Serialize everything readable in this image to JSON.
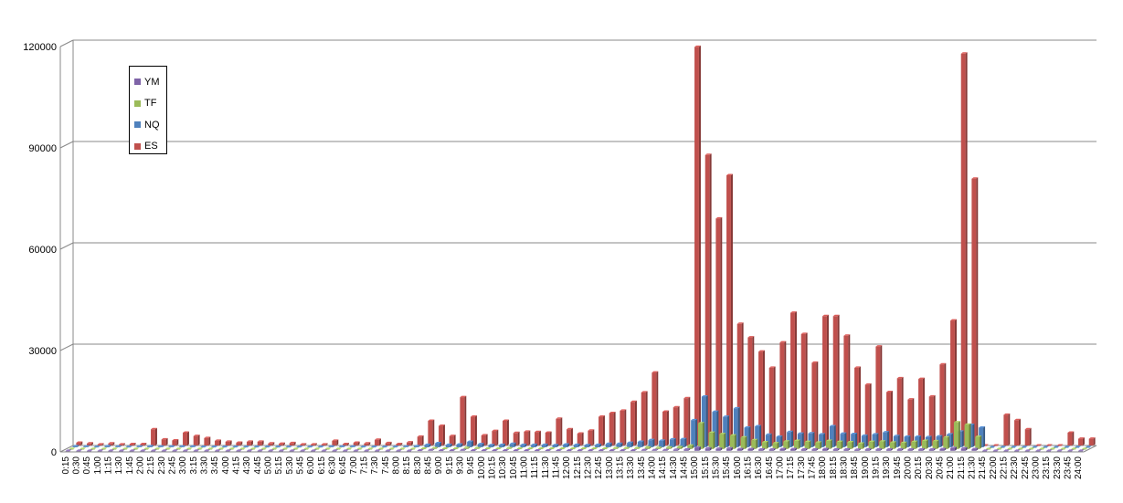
{
  "chart_data": {
    "type": "bar",
    "title": "",
    "xlabel": "",
    "ylabel": "",
    "ylim": [
      0,
      120000
    ],
    "yticks": [
      0,
      30000,
      60000,
      90000,
      120000
    ],
    "grid": true,
    "legend_position": "top-left",
    "categories": [
      "0:15",
      "0:30",
      "0:45",
      "1:00",
      "1:15",
      "1:30",
      "1:45",
      "2:00",
      "2:15",
      "2:30",
      "2:45",
      "3:00",
      "3:15",
      "3:30",
      "3:45",
      "4:00",
      "4:15",
      "4:30",
      "4:45",
      "5:00",
      "5:15",
      "5:30",
      "5:45",
      "6:00",
      "6:15",
      "6:30",
      "6:45",
      "7:00",
      "7:15",
      "7:30",
      "7:45",
      "8:00",
      "8:15",
      "8:30",
      "8:45",
      "9:00",
      "9:15",
      "9:30",
      "9:45",
      "10:00",
      "10:15",
      "10:30",
      "10:45",
      "11:00",
      "11:15",
      "11:30",
      "11:45",
      "12:00",
      "12:15",
      "12:30",
      "12:45",
      "13:00",
      "13:15",
      "13:30",
      "13:45",
      "14:00",
      "14:15",
      "14:30",
      "14:45",
      "15:00",
      "15:15",
      "15:30",
      "15:45",
      "16:00",
      "16:15",
      "16:30",
      "16:45",
      "17:00",
      "17:15",
      "17:30",
      "17:45",
      "18:00",
      "18:15",
      "18:30",
      "18:45",
      "19:00",
      "19:15",
      "19:30",
      "19:45",
      "20:00",
      "20:15",
      "20:30",
      "20:45",
      "21:00",
      "21:15",
      "21:30",
      "21:45",
      "22:00",
      "22:15",
      "22:30",
      "22:45",
      "23:00",
      "23:15",
      "23:30",
      "23:45",
      "24:00"
    ],
    "series": [
      {
        "name": "YM",
        "color": "#7f64a8",
        "values": [
          0,
          0,
          0,
          0,
          0,
          0,
          0,
          0,
          0,
          0,
          0,
          0,
          0,
          0,
          0,
          0,
          0,
          0,
          0,
          0,
          0,
          0,
          0,
          0,
          0,
          0,
          0,
          0,
          0,
          0,
          0,
          0,
          0,
          100,
          200,
          100,
          100,
          200,
          100,
          100,
          100,
          100,
          100,
          100,
          100,
          100,
          100,
          100,
          100,
          100,
          100,
          100,
          100,
          100,
          200,
          200,
          200,
          300,
          400,
          900,
          700,
          600,
          700,
          500,
          500,
          400,
          400,
          500,
          500,
          400,
          400,
          500,
          400,
          400,
          300,
          400,
          400,
          400,
          400,
          400,
          400,
          400,
          500,
          800,
          700,
          500,
          0,
          0,
          0,
          0,
          0,
          0,
          0,
          0,
          0,
          0
        ]
      },
      {
        "name": "TF",
        "color": "#9bbb59",
        "values": [
          0,
          0,
          0,
          0,
          0,
          0,
          0,
          0,
          0,
          0,
          0,
          0,
          0,
          0,
          0,
          0,
          0,
          0,
          0,
          0,
          0,
          0,
          0,
          0,
          0,
          0,
          0,
          0,
          0,
          0,
          0,
          0,
          0,
          100,
          200,
          100,
          100,
          300,
          200,
          100,
          100,
          200,
          100,
          100,
          100,
          100,
          100,
          100,
          100,
          100,
          100,
          200,
          200,
          200,
          400,
          300,
          400,
          500,
          1000,
          7600,
          4800,
          4400,
          4000,
          3400,
          2600,
          2000,
          1700,
          2200,
          2400,
          2100,
          1900,
          2400,
          2100,
          2000,
          1600,
          2100,
          2200,
          1900,
          1800,
          2100,
          2400,
          2300,
          3400,
          7900,
          7200,
          3600,
          0,
          0,
          0,
          0,
          0,
          0,
          0,
          0,
          0,
          0
        ]
      },
      {
        "name": "NQ",
        "color": "#4f81bd",
        "values": [
          300,
          200,
          100,
          300,
          200,
          100,
          200,
          300,
          200,
          200,
          200,
          200,
          100,
          100,
          100,
          100,
          100,
          100,
          100,
          100,
          100,
          100,
          100,
          100,
          200,
          200,
          200,
          100,
          100,
          100,
          100,
          200,
          300,
          700,
          1200,
          700,
          800,
          1600,
          900,
          600,
          700,
          1000,
          700,
          700,
          700,
          600,
          800,
          700,
          600,
          700,
          1000,
          1000,
          1300,
          1600,
          2100,
          1900,
          2300,
          2400,
          8000,
          15000,
          10500,
          9000,
          11500,
          5800,
          6200,
          3700,
          3100,
          4500,
          4000,
          4100,
          3800,
          6200,
          4000,
          3900,
          3400,
          3800,
          4400,
          3300,
          3100,
          3100,
          3000,
          3200,
          3800,
          4600,
          6600,
          5800,
          0,
          0,
          0,
          0,
          0,
          0,
          0,
          0,
          0,
          0
        ]
      },
      {
        "name": "ES",
        "color": "#c0504d",
        "values": [
          800,
          600,
          300,
          600,
          300,
          400,
          400,
          4800,
          1800,
          1500,
          3800,
          2800,
          2200,
          1400,
          1100,
          800,
          1100,
          1100,
          600,
          500,
          700,
          300,
          300,
          300,
          1400,
          400,
          800,
          600,
          1700,
          700,
          400,
          900,
          2600,
          7300,
          5800,
          2800,
          14300,
          8500,
          3000,
          4300,
          7300,
          3700,
          4100,
          4000,
          3800,
          7900,
          4800,
          3500,
          4400,
          8500,
          9600,
          10300,
          12900,
          15700,
          21600,
          10000,
          11300,
          14000,
          118000,
          86000,
          67200,
          80000,
          36000,
          32000,
          27800,
          23000,
          30500,
          39300,
          33000,
          24500,
          38300,
          38300,
          32500,
          23000,
          18000,
          29300,
          15800,
          19900,
          13600,
          19700,
          14500,
          24000,
          37000,
          116000,
          79000,
          0,
          0,
          9100,
          7500,
          4800,
          0,
          0,
          0,
          3800,
          2000,
          2000
        ]
      }
    ],
    "legend_order": [
      "YM",
      "TF",
      "NQ",
      "ES"
    ]
  }
}
